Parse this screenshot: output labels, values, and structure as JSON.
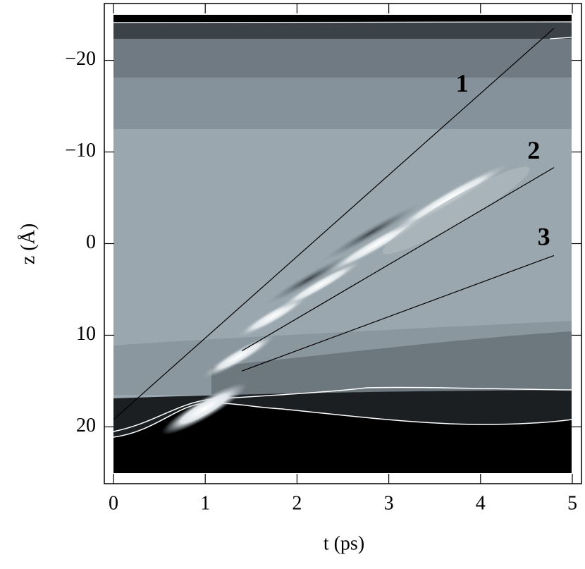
{
  "chart_data": {
    "type": "contour",
    "xlabel": "t (ps)",
    "ylabel": "z (Å)",
    "xlim": [
      -0.1,
      5.1
    ],
    "ylim": [
      -26.2,
      26.2
    ],
    "y_reversed": true,
    "xticks": [
      0,
      1,
      2,
      3,
      4,
      5
    ],
    "yticks": [
      {
        "value": -20,
        "label": "−20"
      },
      {
        "value": -10,
        "label": "−10"
      },
      0,
      10,
      20
    ],
    "lines": [
      {
        "x": [
          0,
          4.8
        ],
        "y": [
          19.2,
          -23.5
        ],
        "color": "#000000"
      },
      {
        "x": [
          1.4,
          4.8
        ],
        "y": [
          11.7,
          -8.3
        ],
        "color": "#000000"
      },
      {
        "x": [
          1.4,
          4.8
        ],
        "y": [
          13.9,
          1.3
        ],
        "color": "#000000"
      }
    ],
    "annotations": [
      {
        "text": "1",
        "x": 3.8,
        "y": -17.2
      },
      {
        "text": "2",
        "x": 4.58,
        "y": -9.9
      },
      {
        "text": "3",
        "x": 4.69,
        "y": -0.5
      }
    ]
  }
}
